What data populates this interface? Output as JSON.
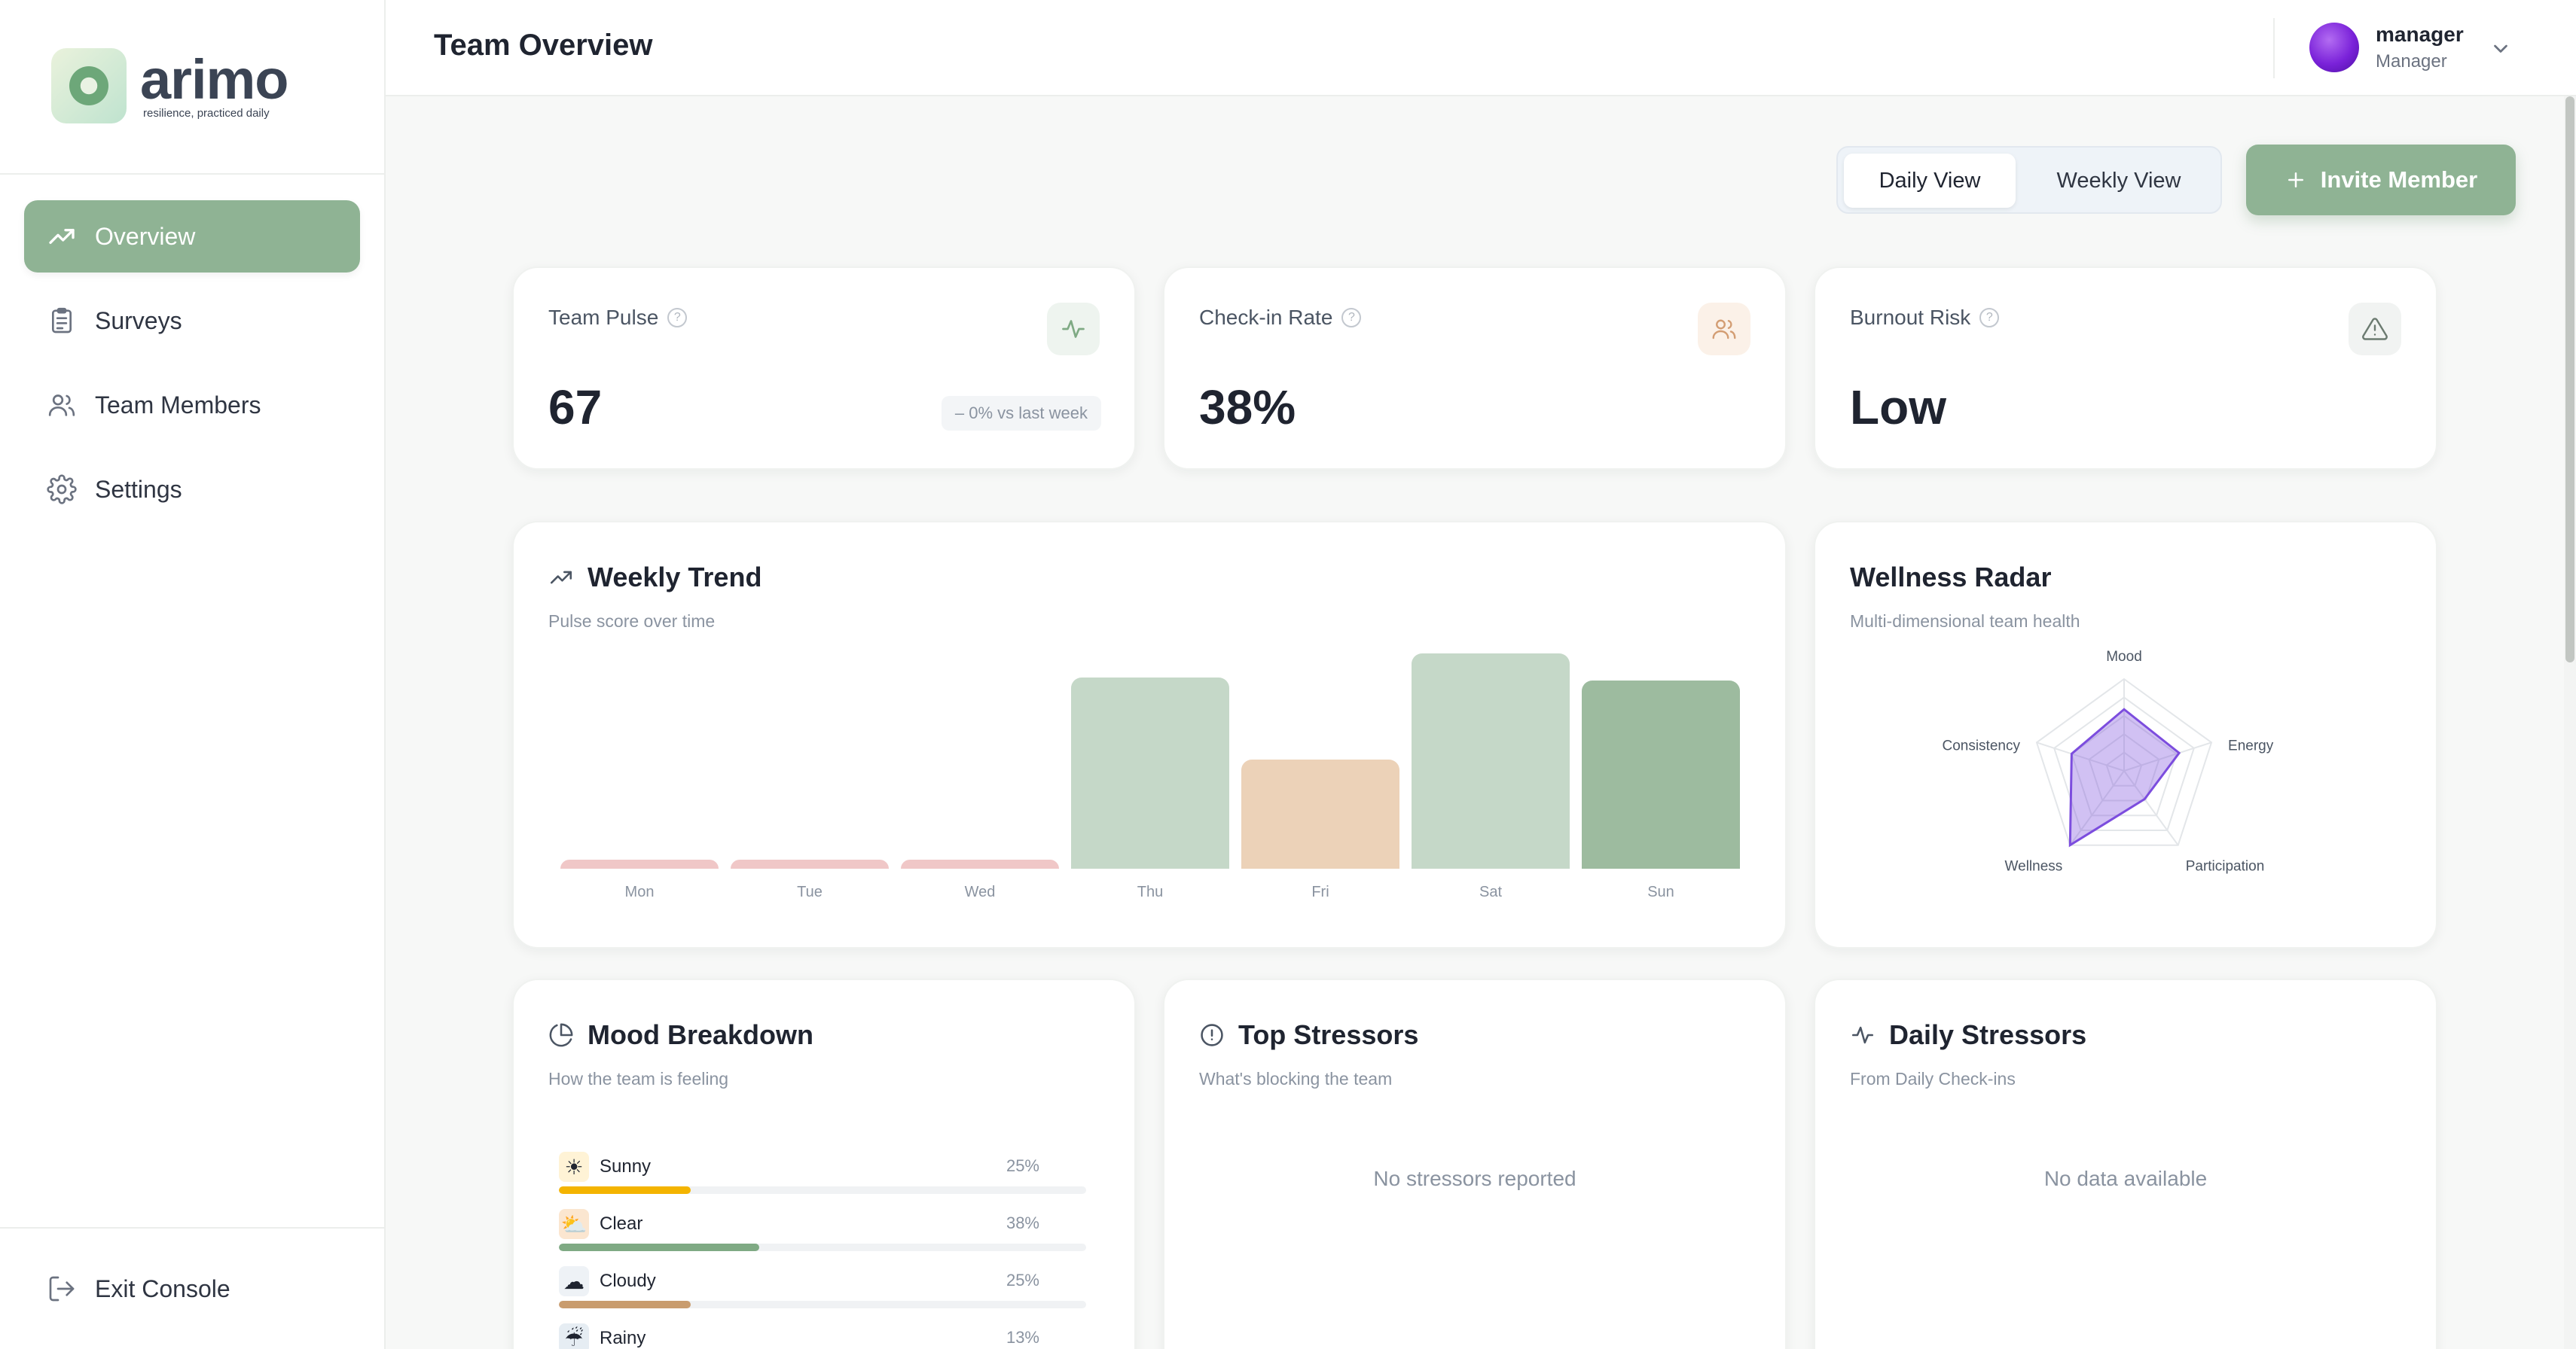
{
  "app": {
    "brand": "arimo",
    "tagline": "resilience, practiced daily"
  },
  "sidebar": {
    "items": [
      {
        "label": "Overview",
        "icon": "trend-up-icon",
        "active": true
      },
      {
        "label": "Surveys",
        "icon": "clipboard-icon",
        "active": false
      },
      {
        "label": "Team Members",
        "icon": "users-icon",
        "active": false
      },
      {
        "label": "Settings",
        "icon": "gear-icon",
        "active": false
      }
    ],
    "exit_label": "Exit Console"
  },
  "header": {
    "title": "Team Overview",
    "user_name": "manager",
    "user_role": "Manager"
  },
  "toolbar": {
    "daily_label": "Daily View",
    "weekly_label": "Weekly View",
    "invite_label": "Invite Member",
    "active_view": "Daily View"
  },
  "stats": {
    "pulse": {
      "label": "Team Pulse",
      "value": "67",
      "delta": "– 0% vs last week"
    },
    "checkin": {
      "label": "Check-in Rate",
      "value": "38%"
    },
    "burnout": {
      "label": "Burnout Risk",
      "value": "Low"
    }
  },
  "weekly_trend": {
    "title": "Weekly Trend",
    "subtitle": "Pulse score over time",
    "chart_data": {
      "type": "bar",
      "categories": [
        "Mon",
        "Tue",
        "Wed",
        "Thu",
        "Fri",
        "Sat",
        "Sun"
      ],
      "values": [
        2,
        2,
        2,
        70,
        40,
        79,
        69
      ],
      "colors": [
        "#f0c7c7",
        "#f0c7c7",
        "#f0c7c7",
        "#c5d8c8",
        "#ecd2b8",
        "#c5d8c8",
        "#9dbb9f"
      ],
      "ylim": [
        0,
        100
      ]
    }
  },
  "wellness_radar": {
    "title": "Wellness Radar",
    "subtitle": "Multi-dimensional team health",
    "chart_data": {
      "type": "radar",
      "axes": [
        "Mood",
        "Energy",
        "Participation",
        "Wellness",
        "Consistency"
      ],
      "values": [
        67,
        63,
        38,
        100,
        60
      ],
      "max": 100,
      "color": "#7c4dde"
    }
  },
  "mood_breakdown": {
    "title": "Mood Breakdown",
    "subtitle": "How the team is feeling",
    "items": [
      {
        "label": "Sunny",
        "pct": "25%",
        "value": 25,
        "color": "#f4b400",
        "emoji": "☀"
      },
      {
        "label": "Clear",
        "pct": "38%",
        "value": 38,
        "color": "#7faa84",
        "emoji": "⛅"
      },
      {
        "label": "Cloudy",
        "pct": "25%",
        "value": 25,
        "color": "#c99c6e",
        "emoji": "☁"
      },
      {
        "label": "Rainy",
        "pct": "13%",
        "value": 13,
        "color": "#8aa0b8",
        "emoji": "☔"
      }
    ]
  },
  "top_stressors": {
    "title": "Top Stressors",
    "subtitle": "What's blocking the team",
    "empty": "No stressors reported"
  },
  "daily_stressors": {
    "title": "Daily Stressors",
    "subtitle": "From Daily Check-ins",
    "empty": "No data available"
  }
}
